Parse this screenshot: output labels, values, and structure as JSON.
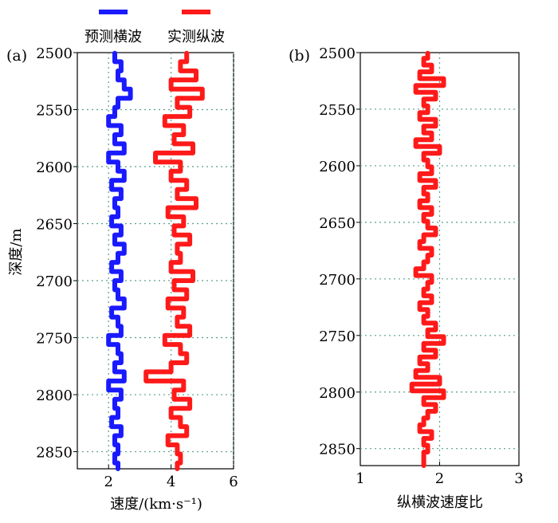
{
  "legend": [
    {
      "label": "预测横波",
      "color": "#1a1aff"
    },
    {
      "label": "实测纵波",
      "color": "#ff1a1a"
    }
  ],
  "chart_data": [
    {
      "panel_label": "(a)",
      "type": "line",
      "xlabel": "速度/(km·s⁻¹)",
      "ylabel": "深度/m",
      "xlim": [
        1,
        6
      ],
      "ylim": [
        2500,
        2865
      ],
      "xticks": [
        "2",
        "4",
        "6"
      ],
      "yticks": [
        "2500",
        "2550",
        "2600",
        "2650",
        "2700",
        "2750",
        "2800",
        "2850"
      ],
      "grid": "dotted",
      "series": [
        {
          "name": "预测横波",
          "color": "#1a1aff",
          "depth": [
            2504,
            2512,
            2520,
            2528,
            2536,
            2544,
            2552,
            2560,
            2568,
            2576,
            2584,
            2592,
            2600,
            2608,
            2616,
            2624,
            2632,
            2640,
            2648,
            2656,
            2664,
            2672,
            2680,
            2688,
            2696,
            2704,
            2712,
            2720,
            2728,
            2736,
            2744,
            2752,
            2760,
            2768,
            2776,
            2784,
            2792,
            2800,
            2808,
            2816,
            2824,
            2832,
            2840,
            2848,
            2856,
            2864
          ],
          "values": [
            2.2,
            2.4,
            2.3,
            2.5,
            2.7,
            2.3,
            2.2,
            2.0,
            2.4,
            2.2,
            2.5,
            2.0,
            2.3,
            2.5,
            2.1,
            2.4,
            2.2,
            2.3,
            2.1,
            2.4,
            2.2,
            2.5,
            2.3,
            2.1,
            2.4,
            2.2,
            2.3,
            2.5,
            2.1,
            2.3,
            2.4,
            2.0,
            2.3,
            2.4,
            2.2,
            2.5,
            2.0,
            2.4,
            2.2,
            2.3,
            2.1,
            2.4,
            2.2,
            2.3,
            2.2,
            2.3
          ]
        },
        {
          "name": "实测纵波",
          "color": "#ff1a1a",
          "depth": [
            2504,
            2512,
            2520,
            2528,
            2536,
            2544,
            2552,
            2560,
            2568,
            2576,
            2584,
            2592,
            2600,
            2608,
            2616,
            2624,
            2632,
            2640,
            2648,
            2656,
            2664,
            2672,
            2680,
            2688,
            2696,
            2704,
            2712,
            2720,
            2728,
            2736,
            2744,
            2752,
            2760,
            2768,
            2776,
            2784,
            2792,
            2800,
            2808,
            2816,
            2824,
            2832,
            2840,
            2848,
            2856,
            2864
          ],
          "values": [
            4.5,
            4.3,
            4.8,
            4.0,
            5.0,
            4.2,
            4.6,
            3.8,
            4.4,
            4.1,
            4.7,
            3.5,
            4.3,
            4.0,
            4.5,
            4.2,
            4.8,
            3.9,
            4.4,
            4.1,
            4.6,
            4.2,
            4.3,
            4.0,
            4.7,
            4.1,
            4.5,
            3.9,
            4.4,
            4.2,
            4.6,
            3.8,
            4.3,
            4.5,
            4.0,
            3.2,
            4.4,
            4.1,
            4.6,
            4.0,
            4.3,
            4.5,
            3.9,
            4.2,
            4.3,
            4.2
          ]
        }
      ]
    },
    {
      "panel_label": "(b)",
      "type": "line",
      "xlabel": "纵横波速度比",
      "ylabel": "",
      "xlim": [
        1,
        3
      ],
      "ylim": [
        2500,
        2865
      ],
      "xticks": [
        "1",
        "2",
        "3"
      ],
      "yticks": [
        "2500",
        "2550",
        "2600",
        "2650",
        "2700",
        "2750",
        "2800",
        "2850"
      ],
      "grid": "dotted",
      "series": [
        {
          "name": "纵横波速度比",
          "color": "#ff1a1a",
          "depth": [
            2502,
            2508,
            2514,
            2520,
            2526,
            2532,
            2538,
            2544,
            2550,
            2556,
            2562,
            2568,
            2574,
            2580,
            2586,
            2592,
            2598,
            2604,
            2610,
            2616,
            2622,
            2628,
            2634,
            2640,
            2646,
            2652,
            2658,
            2664,
            2670,
            2676,
            2682,
            2688,
            2694,
            2700,
            2706,
            2712,
            2718,
            2724,
            2730,
            2736,
            2742,
            2748,
            2754,
            2760,
            2766,
            2772,
            2778,
            2784,
            2790,
            2796,
            2802,
            2808,
            2814,
            2820,
            2826,
            2832,
            2838,
            2844,
            2850,
            2856,
            2862
          ],
          "values": [
            1.85,
            1.8,
            1.9,
            1.75,
            2.05,
            1.7,
            1.95,
            1.8,
            1.85,
            1.75,
            1.95,
            1.8,
            1.9,
            1.7,
            2.0,
            1.8,
            1.85,
            1.9,
            1.75,
            1.95,
            1.8,
            1.85,
            1.75,
            1.9,
            1.8,
            1.85,
            1.95,
            1.8,
            1.75,
            1.9,
            1.85,
            1.8,
            1.7,
            1.9,
            1.85,
            1.8,
            1.9,
            1.75,
            1.85,
            1.8,
            1.95,
            1.85,
            2.05,
            1.8,
            1.95,
            1.75,
            1.85,
            1.7,
            2.0,
            1.65,
            2.05,
            1.8,
            1.95,
            1.85,
            1.8,
            1.75,
            1.9,
            1.8,
            1.85,
            1.8,
            1.8
          ]
        }
      ]
    }
  ]
}
